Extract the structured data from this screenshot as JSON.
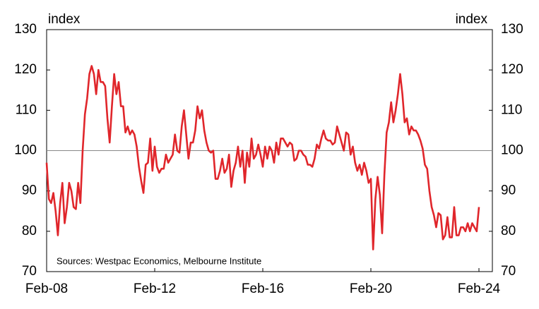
{
  "chart_data": {
    "type": "line",
    "y_label": "index",
    "y2_label": "index",
    "annotation": "Sources: Westpac Economics, Melbourne Institute",
    "categories": [
      "Feb-08",
      null,
      null,
      null,
      null,
      null,
      null,
      null,
      null,
      null,
      null,
      null,
      null,
      null,
      null,
      null,
      null,
      null,
      null,
      null,
      null,
      null,
      null,
      null,
      null,
      null,
      null,
      null,
      null,
      null,
      null,
      null,
      null,
      null,
      null,
      null,
      null,
      null,
      null,
      null,
      null,
      null,
      null,
      null,
      null,
      null,
      null,
      null,
      "Feb-12",
      null,
      null,
      null,
      null,
      null,
      null,
      null,
      null,
      null,
      null,
      null,
      null,
      null,
      null,
      null,
      null,
      null,
      null,
      null,
      null,
      null,
      null,
      null,
      null,
      null,
      null,
      null,
      null,
      null,
      null,
      null,
      null,
      null,
      null,
      null,
      null,
      null,
      null,
      null,
      null,
      null,
      null,
      null,
      null,
      null,
      null,
      null,
      "Feb-16",
      null,
      null,
      null,
      null,
      null,
      null,
      null,
      null,
      null,
      null,
      null,
      null,
      null,
      null,
      null,
      null,
      null,
      null,
      null,
      null,
      null,
      null,
      null,
      null,
      null,
      null,
      null,
      null,
      null,
      null,
      null,
      null,
      null,
      null,
      null,
      null,
      null,
      null,
      null,
      null,
      null,
      null,
      null,
      null,
      null,
      null,
      null,
      "Feb-20",
      null,
      null,
      null,
      null,
      null,
      null,
      null,
      null,
      null,
      null,
      null,
      null,
      null,
      null,
      null,
      null,
      null,
      null,
      null,
      null,
      null,
      null,
      null,
      null,
      null,
      null,
      null,
      null,
      null,
      null,
      null,
      null,
      null,
      null,
      null,
      null,
      null,
      null,
      null,
      null,
      null,
      null,
      null,
      null,
      null,
      null,
      null,
      "Feb-24"
    ],
    "series": [
      {
        "color": "#e0262b",
        "values": [
          97,
          88,
          87,
          89.5,
          85,
          79,
          87,
          92,
          82,
          86,
          92,
          90,
          86,
          85.5,
          92,
          87,
          100,
          109,
          113,
          119,
          121,
          119,
          114,
          120,
          117,
          117,
          116,
          108,
          102,
          111,
          119,
          114,
          117,
          111,
          111,
          104.5,
          106,
          104,
          105,
          104,
          101,
          96,
          92.5,
          89.5,
          96.5,
          97,
          103,
          95,
          101,
          96,
          94.5,
          95.5,
          95.5,
          99,
          97,
          98,
          99,
          104,
          100,
          99.5,
          106,
          110,
          104,
          98,
          102,
          102,
          105,
          111,
          108,
          110,
          105,
          102,
          100,
          99.5,
          100,
          93,
          93,
          95,
          98,
          94.5,
          95.5,
          99,
          91,
          95,
          97,
          101,
          96,
          100,
          92,
          99.5,
          96,
          103,
          98,
          99,
          101.5,
          99,
          96,
          101,
          98,
          101,
          100,
          97,
          102,
          99,
          103,
          103,
          102,
          101,
          102,
          101.5,
          97.5,
          98,
          100,
          100,
          99,
          98.5,
          96.5,
          96.5,
          96,
          98,
          101.5,
          100.5,
          103,
          105,
          103,
          102.5,
          102.5,
          101.5,
          102,
          106,
          104,
          102,
          100,
          104.5,
          104,
          99,
          101,
          97,
          95,
          96.5,
          94,
          97,
          95,
          92,
          93,
          75.5,
          88,
          93.5,
          89,
          79.5,
          94,
          104.5,
          107,
          112,
          107,
          110,
          114,
          119,
          114,
          107,
          108,
          104,
          106,
          105,
          105,
          104,
          102.5,
          100.5,
          96.5,
          95.5,
          90,
          86,
          84,
          81,
          84.5,
          84,
          78,
          79,
          83.5,
          78.5,
          78.5,
          86,
          79,
          79,
          81,
          81,
          80,
          82,
          80,
          82,
          81,
          80,
          86
        ]
      }
    ],
    "ylim": [
      70,
      130
    ],
    "yticks": [
      70,
      80,
      90,
      100,
      110,
      120,
      130
    ],
    "y2lim": [
      70,
      130
    ],
    "y2ticks": [
      70,
      80,
      90,
      100,
      110,
      120,
      130
    ],
    "hline": 100
  }
}
